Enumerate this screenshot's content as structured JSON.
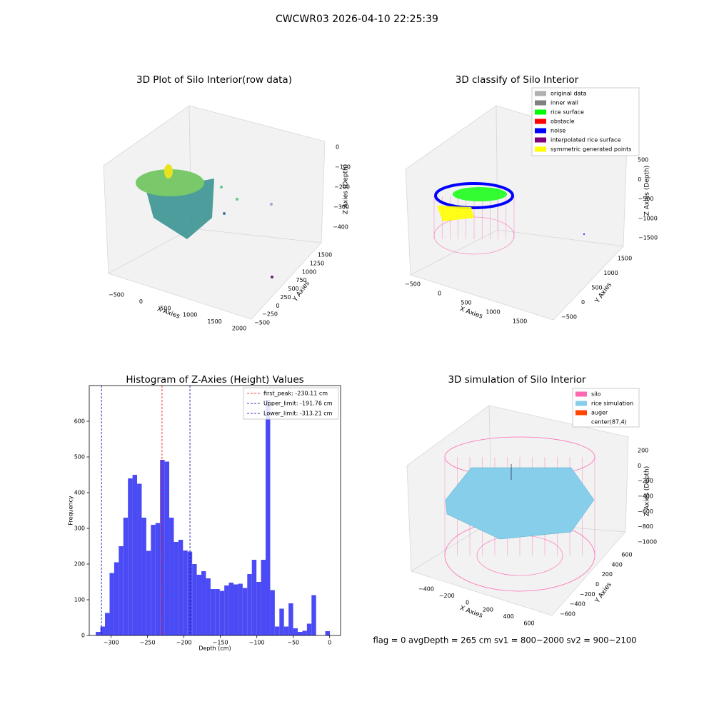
{
  "title": "CWCWR03 2026-04-10 22:25:39",
  "status": "flag = 0     avgDepth = 265 cm  sv1 = 800~2000  sv2 = 900~2100",
  "chart_data": [
    {
      "type": "scatter3d",
      "title": "3D Plot of Silo Interior(row data)",
      "xlabel": "X Axies",
      "ylabel": "Y Axies",
      "zlabel": "Z Axies (Depth)",
      "xticks": [
        {
          "value": -500,
          "label": "−500"
        },
        0,
        500,
        1000,
        1500,
        2000
      ],
      "yticks": [
        {
          "value": -500,
          "label": "−500"
        },
        {
          "value": -250,
          "label": "−250"
        },
        0,
        250,
        500,
        750,
        1000,
        1250,
        1500
      ],
      "zticks": [
        0,
        {
          "value": -100,
          "label": "−100"
        },
        {
          "value": -200,
          "label": "−200"
        },
        {
          "value": -300,
          "label": "−300"
        },
        {
          "value": -400,
          "label": "−400"
        }
      ]
    },
    {
      "type": "scatter3d",
      "title": "3D classify of Silo Interior",
      "xlabel": "X Axies",
      "ylabel": "Y Axies",
      "zlabel": "Z Axies (Depth)",
      "xticks": [
        {
          "value": -500,
          "label": "−500"
        },
        0,
        500,
        1000,
        1500
      ],
      "yticks": [
        {
          "value": -500,
          "label": "−500"
        },
        0,
        500,
        1000,
        1500
      ],
      "zticks": [
        500,
        0,
        {
          "value": -500,
          "label": "−500"
        },
        {
          "value": -1000,
          "label": "−1000"
        },
        {
          "value": -1500,
          "label": "−1500"
        }
      ],
      "legend": [
        {
          "name": "original data",
          "color": "#b0b0b0"
        },
        {
          "name": "inner wall",
          "color": "#808080"
        },
        {
          "name": "rice surface",
          "color": "#00ff00"
        },
        {
          "name": "obstacle",
          "color": "#ff0000"
        },
        {
          "name": "noise",
          "color": "#0000ff"
        },
        {
          "name": "interpolated rice surface",
          "color": "#800080"
        },
        {
          "name": "symmetric generated points",
          "color": "#ffff00"
        }
      ]
    },
    {
      "type": "histogram",
      "title": "Histogram of Z-Axies (Height) Values",
      "xlabel": "Depth (cm)",
      "ylabel": "Frequency",
      "color": "#4b4bf5",
      "bins": [
        -321,
        -314.7,
        -308.4,
        -302.1,
        -295.8,
        -289.5,
        -283.2,
        -276.9,
        -270.6,
        -264.3,
        -258,
        -251.7,
        -245.4,
        -239.1,
        -232.8,
        -226.5,
        -220.2,
        -213.9,
        -207.6,
        -201.3,
        -195,
        -188.7,
        -182.4,
        -176.1,
        -169.8,
        -163.5,
        -157.2,
        -150.9,
        -144.6,
        -138.3,
        -132,
        -125.7,
        -119.4,
        -113.1,
        -106.8,
        -100.5,
        -94.2,
        -87.9,
        -81.6,
        -75.3,
        -69,
        -62.7,
        -56.4,
        -50.1,
        -43.8,
        -37.5,
        -31.2,
        -24.9,
        -18.6,
        -12.3,
        -6,
        0.3
      ],
      "counts": [
        10,
        25,
        63,
        175,
        205,
        250,
        330,
        440,
        450,
        425,
        330,
        237,
        310,
        315,
        492,
        487,
        330,
        262,
        268,
        238,
        235,
        200,
        170,
        180,
        160,
        130,
        130,
        125,
        140,
        148,
        143,
        145,
        133,
        172,
        212,
        150,
        212,
        660,
        127,
        25,
        75,
        25,
        90,
        20,
        10,
        13,
        33,
        113,
        0,
        0,
        12
      ],
      "xlim": [
        -330,
        15
      ],
      "ylim": [
        0,
        700
      ],
      "xticks": [
        {
          "value": -300,
          "label": "−300"
        },
        {
          "value": -250,
          "label": "−250"
        },
        {
          "value": -200,
          "label": "−200"
        },
        {
          "value": -150,
          "label": "−150"
        },
        {
          "value": -100,
          "label": "−100"
        },
        {
          "value": -50,
          "label": "−50"
        },
        0
      ],
      "yticks": [
        0,
        100,
        200,
        300,
        400,
        500,
        600
      ],
      "lines": [
        {
          "name": "first_peak: -230.11 cm",
          "value": -230.11,
          "color": "#ff0000"
        },
        {
          "name": "Upper_limit: -191.76 cm",
          "value": -191.76,
          "color": "#0000aa"
        },
        {
          "name": "Lower_limit: -313.21 cm",
          "value": -313.21,
          "color": "#0000aa"
        }
      ]
    },
    {
      "type": "surface3d",
      "title": "3D simulation of Silo Interior",
      "xlabel": "X Axies",
      "ylabel": "Y Axies",
      "zlabel": "Z Axies (Depth)",
      "xticks": [
        {
          "value": -400,
          "label": "−400"
        },
        {
          "value": -200,
          "label": "−200"
        },
        0,
        200,
        400,
        600
      ],
      "yticks": [
        {
          "value": -600,
          "label": "−600"
        },
        {
          "value": -400,
          "label": "−400"
        },
        {
          "value": -200,
          "label": "−200"
        },
        0,
        200,
        400,
        600
      ],
      "zticks": [
        200,
        0,
        {
          "value": -200,
          "label": "−200"
        },
        {
          "value": -400,
          "label": "−400"
        },
        {
          "value": -600,
          "label": "−600"
        },
        {
          "value": -800,
          "label": "−800"
        },
        {
          "value": -1000,
          "label": "−1000"
        }
      ],
      "legend": [
        {
          "name": "silo",
          "color": "#ff69b4"
        },
        {
          "name": "rice simulation",
          "color": "#87ceeb"
        },
        {
          "name": "auger",
          "color": "#ff4500"
        },
        {
          "name": "center(87,4)",
          "color": "#ffffff"
        }
      ]
    }
  ]
}
